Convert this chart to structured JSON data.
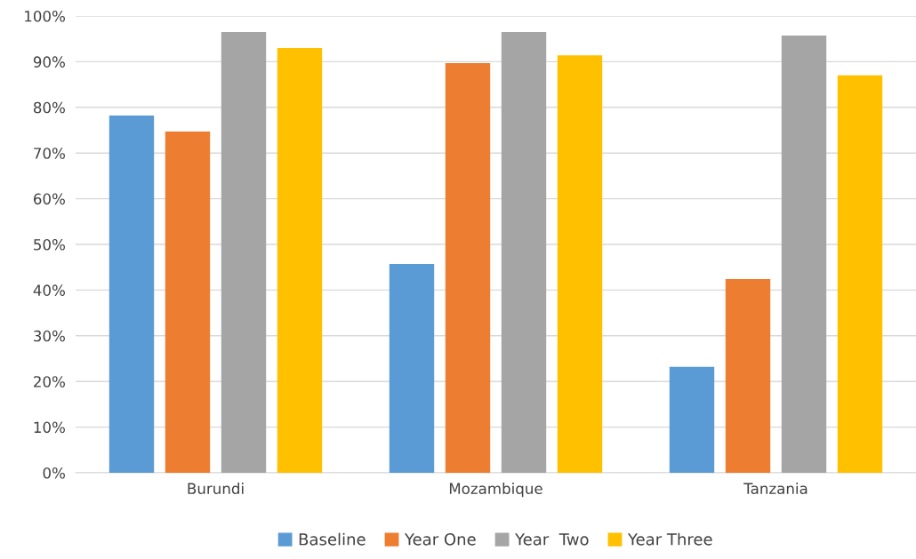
{
  "chart_data": {
    "type": "bar",
    "categories": [
      "Burundi",
      "Mozambique",
      "Tanzania"
    ],
    "series": [
      {
        "name": "Baseline",
        "color": "#5b9bd5",
        "values": [
          78.2,
          45.7,
          23.2
        ]
      },
      {
        "name": "Year One",
        "color": "#ed7d31",
        "values": [
          74.7,
          89.7,
          42.4
        ]
      },
      {
        "name": "Year  Two",
        "color": "#a5a5a5",
        "values": [
          96.5,
          96.5,
          95.7
        ]
      },
      {
        "name": "Year Three",
        "color": "#ffc000",
        "values": [
          93.0,
          91.4,
          87.0
        ]
      }
    ],
    "ylim": [
      0,
      100
    ],
    "yticks": [
      {
        "value": 0,
        "label": "0%"
      },
      {
        "value": 10,
        "label": "10%"
      },
      {
        "value": 20,
        "label": "20%"
      },
      {
        "value": 30,
        "label": "30%"
      },
      {
        "value": 40,
        "label": "40%"
      },
      {
        "value": 50,
        "label": "50%"
      },
      {
        "value": 60,
        "label": "60%"
      },
      {
        "value": 70,
        "label": "70%"
      },
      {
        "value": 80,
        "label": "80%"
      },
      {
        "value": 90,
        "label": "90%"
      },
      {
        "value": 100,
        "label": "100%"
      }
    ],
    "grid": "y",
    "legend": "bottom"
  }
}
